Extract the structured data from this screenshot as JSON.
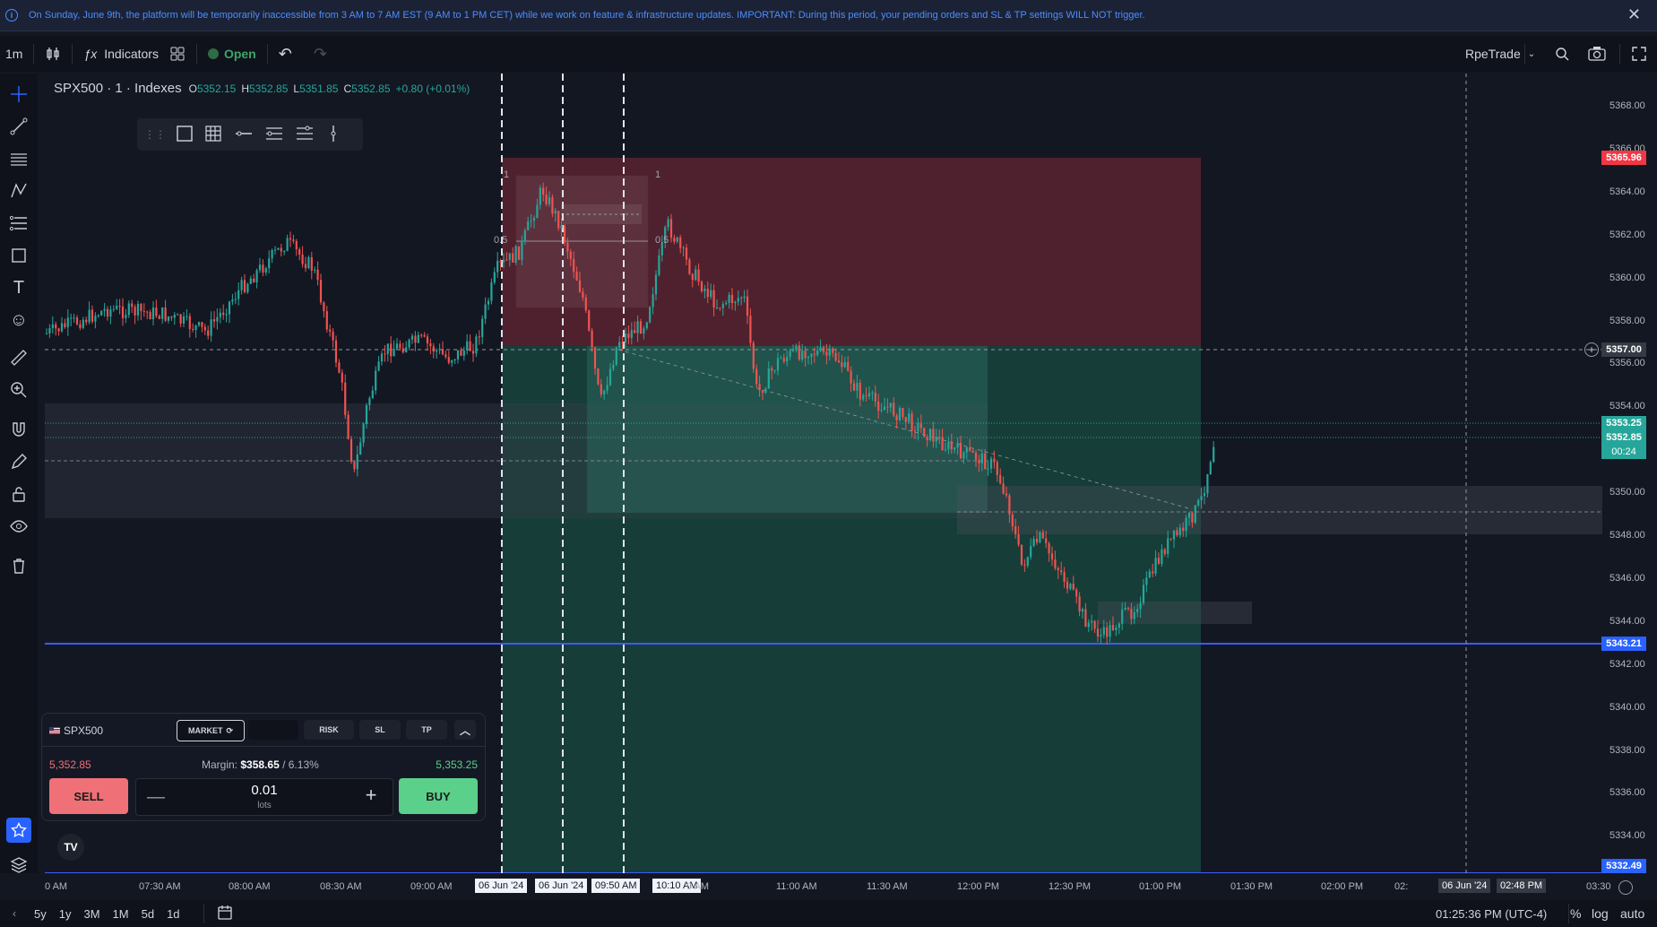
{
  "banner": {
    "text": "On Sunday, June 9th, the platform will be temporarily inaccessible from 3 AM to 7 AM EST (9 AM to 1 PM CET) while we work on feature & infrastructure updates. IMPORTANT: During this period, your pending orders and SL & TP settings WILL NOT trigger.",
    "close_label": "✕"
  },
  "toolbar": {
    "interval": "1m",
    "indicators_label": "Indicators",
    "market_status": "Open",
    "account_name": "RpeTrade"
  },
  "legend": {
    "symbol": "SPX500 · 1 · Indexes",
    "o_label": "O",
    "o_value": "5352.15",
    "h_label": "H",
    "h_value": "5352.85",
    "l_label": "L",
    "l_value": "5351.85",
    "c_label": "C",
    "c_value": "5352.85",
    "change": "+0.80 (+0.01%)"
  },
  "price_axis": {
    "ticks": [
      "5368.00",
      "5366.00",
      "5364.00",
      "5362.00",
      "5360.00",
      "5358.00",
      "5356.00",
      "5354.00",
      "5352.00",
      "5350.00",
      "5348.00",
      "5346.00",
      "5344.00",
      "5342.00",
      "5340.00",
      "5338.00",
      "5336.00",
      "5334.00"
    ],
    "tags": {
      "stop": "5365.96",
      "crosshair": "5357.00",
      "ask": "5353.25",
      "bid": "5352.85",
      "countdown": "00:24",
      "blue_top": "5343.21",
      "blue_bottom": "5332.49"
    }
  },
  "time_axis": {
    "ticks": [
      "0 AM",
      "07:30 AM",
      "08:00 AM",
      "08:30 AM",
      "09:00 AM",
      "06 Jun '24",
      "06 Jun '24",
      "09:50 AM",
      "10:10 AM",
      "0 AM",
      "11:00 AM",
      "11:30 AM",
      "12:00 PM",
      "12:30 PM",
      "01:00 PM",
      "01:30 PM",
      "02:00 PM",
      "02:",
      "06 Jun '24",
      "02:48 PM",
      "03:30"
    ]
  },
  "fib_labels": {
    "top_left": "1",
    "top_right": "1",
    "mid_left": "0.5",
    "mid_right": "0.5"
  },
  "order_panel": {
    "symbol": "SPX500",
    "market_label": "MARKET",
    "risk_label": "RISK",
    "sl_label": "SL",
    "tp_label": "TP",
    "sell_price": "5,352.85",
    "margin_label": "Margin:",
    "margin_value": "$358.65",
    "margin_pct": "/ 6.13%",
    "buy_price": "5,353.25",
    "sell_label": "SELL",
    "buy_label": "BUY",
    "lots_value": "0.01",
    "lots_label": "lots",
    "colors": {
      "sell": "#f07077",
      "buy": "#5bd08a"
    }
  },
  "bottom_bar": {
    "ranges": [
      "5y",
      "1y",
      "3M",
      "1M",
      "5d",
      "1d"
    ],
    "clock": "01:25:36 PM (UTC-4)",
    "pct_label": "%",
    "log_label": "log",
    "auto_label": "auto"
  },
  "colors": {
    "accent": "#2962ff",
    "stop_zone": "#f2364580",
    "target_zone": "#2ea08c",
    "up": "#26a69a",
    "down": "#ef5350"
  }
}
